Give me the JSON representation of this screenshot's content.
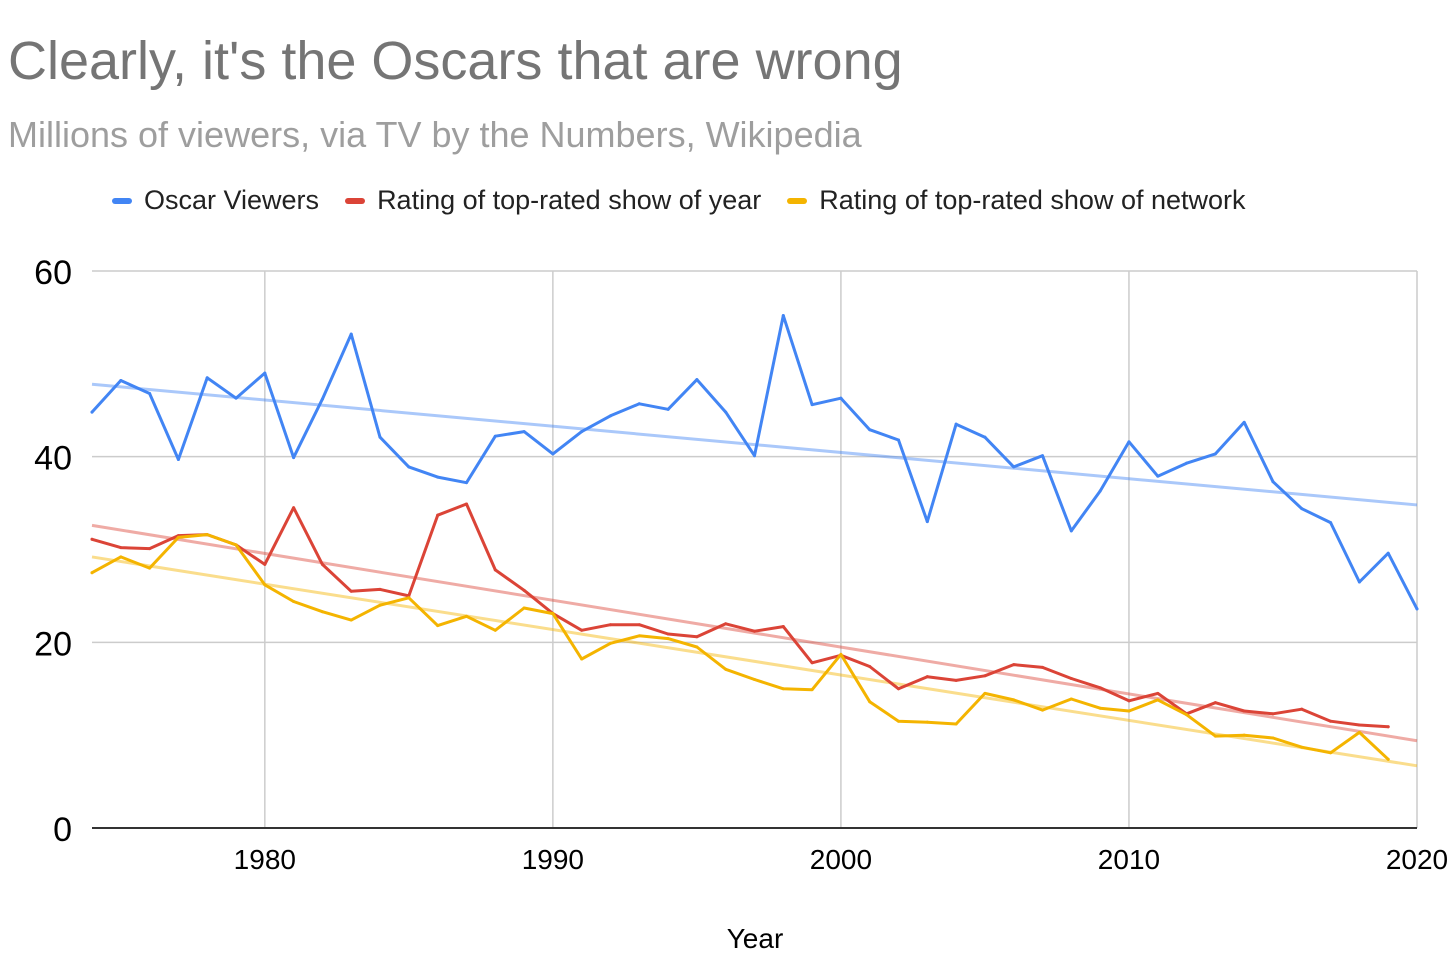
{
  "title": "Clearly, it's the Oscars that are wrong",
  "subtitle": "Millions of viewers, via TV by the Numbers, Wikipedia",
  "legend": [
    {
      "label": "Oscar Viewers",
      "color": "#4285f4"
    },
    {
      "label": "Rating of top-rated show of year",
      "color": "#db4437"
    },
    {
      "label": "Rating of top-rated show of network",
      "color": "#f4b400"
    }
  ],
  "chart_data": {
    "type": "line",
    "title": "Clearly, it's the Oscars that are wrong",
    "subtitle": "Millions of viewers, via TV by the Numbers, Wikipedia",
    "xlabel": "Year",
    "ylabel": "",
    "xlim": [
      1974,
      2020
    ],
    "ylim": [
      0,
      60
    ],
    "x_ticks": [
      "1980",
      "1990",
      "2000",
      "2010",
      "2020"
    ],
    "y_ticks": [
      "0",
      "20",
      "40",
      "60"
    ],
    "grid": true,
    "legend_position": "top",
    "x": [
      1974,
      1975,
      1976,
      1977,
      1978,
      1979,
      1980,
      1981,
      1982,
      1983,
      1984,
      1985,
      1986,
      1987,
      1988,
      1989,
      1990,
      1991,
      1992,
      1993,
      1994,
      1995,
      1996,
      1997,
      1998,
      1999,
      2000,
      2001,
      2002,
      2003,
      2004,
      2005,
      2006,
      2007,
      2008,
      2009,
      2010,
      2011,
      2012,
      2013,
      2014,
      2015,
      2016,
      2017,
      2018,
      2019,
      2020
    ],
    "series": [
      {
        "name": "Oscar Viewers",
        "color": "#4285f4",
        "values": [
          44.8,
          48.2,
          46.8,
          39.7,
          48.5,
          46.3,
          49.0,
          39.9,
          46.2,
          53.2,
          42.1,
          38.9,
          37.8,
          37.2,
          42.2,
          42.7,
          40.3,
          42.7,
          44.4,
          45.7,
          45.1,
          48.3,
          44.8,
          40.1,
          55.2,
          45.6,
          46.3,
          42.9,
          41.8,
          33.0,
          43.5,
          42.1,
          38.9,
          40.1,
          32.0,
          36.3,
          41.6,
          37.9,
          39.3,
          40.3,
          43.7,
          37.3,
          34.4,
          32.9,
          26.5,
          29.6,
          23.6
        ],
        "trend": [
          47.8,
          34.8
        ]
      },
      {
        "name": "Rating of top-rated show of year",
        "color": "#db4437",
        "values": [
          31.1,
          30.2,
          30.1,
          31.5,
          31.6,
          30.5,
          28.4,
          34.5,
          28.4,
          25.5,
          25.7,
          25.0,
          33.7,
          34.9,
          27.8,
          25.6,
          23.1,
          21.3,
          21.9,
          21.9,
          20.9,
          20.6,
          22.0,
          21.2,
          21.7,
          17.8,
          18.6,
          17.4,
          15.0,
          16.3,
          15.9,
          16.4,
          17.6,
          17.3,
          16.1,
          15.1,
          13.7,
          14.5,
          12.3,
          13.5,
          12.6,
          12.3,
          12.8,
          11.5,
          11.1,
          10.9,
          null
        ],
        "trend": [
          32.6,
          9.4
        ]
      },
      {
        "name": "Rating of top-rated show of network",
        "color": "#f4b400",
        "values": [
          27.5,
          29.2,
          28.0,
          31.3,
          31.6,
          30.5,
          26.2,
          24.4,
          23.3,
          22.4,
          24.0,
          24.8,
          21.8,
          22.8,
          21.3,
          23.7,
          23.1,
          18.2,
          19.9,
          20.7,
          20.4,
          19.5,
          17.1,
          16.0,
          15.0,
          14.9,
          18.7,
          13.6,
          11.5,
          11.4,
          11.2,
          14.5,
          13.8,
          12.7,
          13.9,
          12.9,
          12.6,
          13.8,
          12.2,
          9.9,
          10.0,
          9.7,
          8.7,
          8.1,
          10.3,
          7.4,
          null
        ],
        "trend": [
          29.2,
          6.7
        ]
      }
    ]
  }
}
